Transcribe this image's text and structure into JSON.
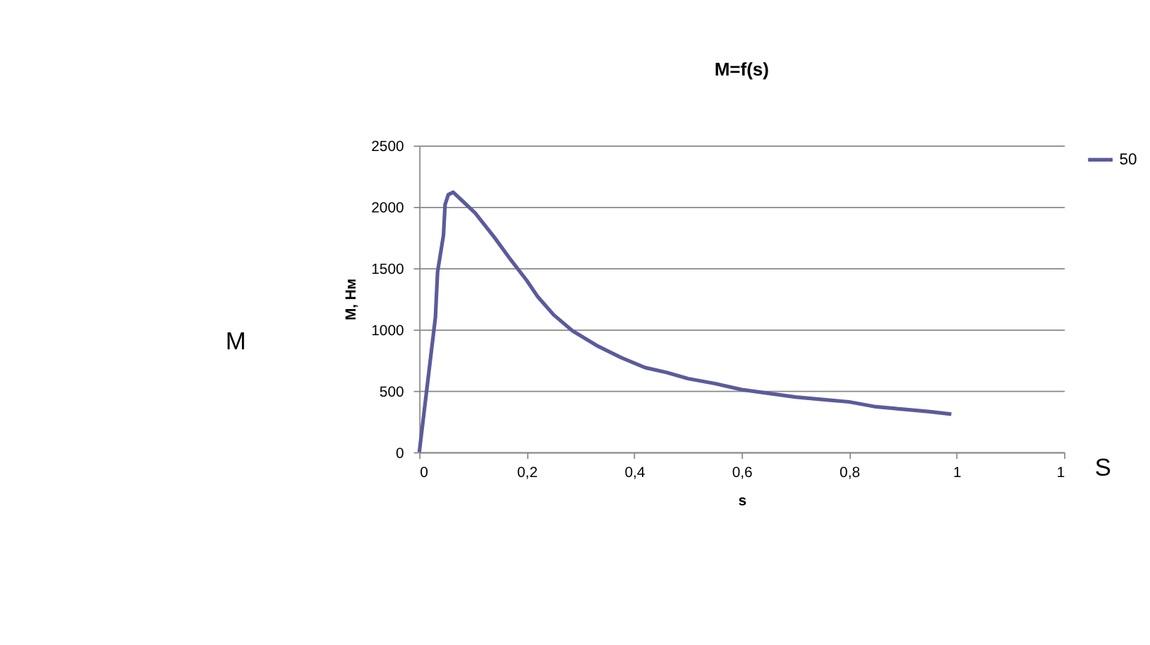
{
  "chart_data": {
    "type": "line",
    "title": "M=f(s)",
    "xlabel": "s",
    "ylabel": "M, Нм",
    "annotations": [
      "M",
      "S"
    ],
    "xlim": [
      0,
      1.2
    ],
    "xticks": [
      0,
      {
        "value": 0.2,
        "label": "0,2"
      },
      {
        "value": 0.4,
        "label": "0,4"
      },
      {
        "value": 0.6,
        "label": "0,6"
      },
      {
        "value": 0.8,
        "label": "0,8"
      },
      1,
      {
        "value": 1.2,
        "label": "1"
      }
    ],
    "ylim": [
      0,
      2500
    ],
    "yticks": [
      0,
      500,
      1000,
      1500,
      2000,
      2500
    ],
    "grid": "y",
    "legend": "right",
    "marker": "none",
    "line_style": "solid",
    "series": [
      {
        "name": "50",
        "color": "#5b5b9b",
        "x": [
          0,
          0.015,
          0.03,
          0.034,
          0.045,
          0.048,
          0.054,
          0.063,
          0.08,
          0.104,
          0.14,
          0.17,
          0.2,
          0.22,
          0.25,
          0.285,
          0.33,
          0.376,
          0.42,
          0.46,
          0.5,
          0.55,
          0.6,
          0.65,
          0.7,
          0.75,
          0.8,
          0.85,
          0.9,
          0.95,
          0.99
        ],
        "values": [
          0,
          550,
          1100,
          1470,
          1770,
          2020,
          2100,
          2120,
          2050,
          1950,
          1750,
          1570,
          1400,
          1270,
          1120,
          990,
          870,
          770,
          690,
          650,
          600,
          560,
          510,
          480,
          450,
          430,
          410,
          370,
          350,
          330,
          310
        ]
      }
    ]
  }
}
